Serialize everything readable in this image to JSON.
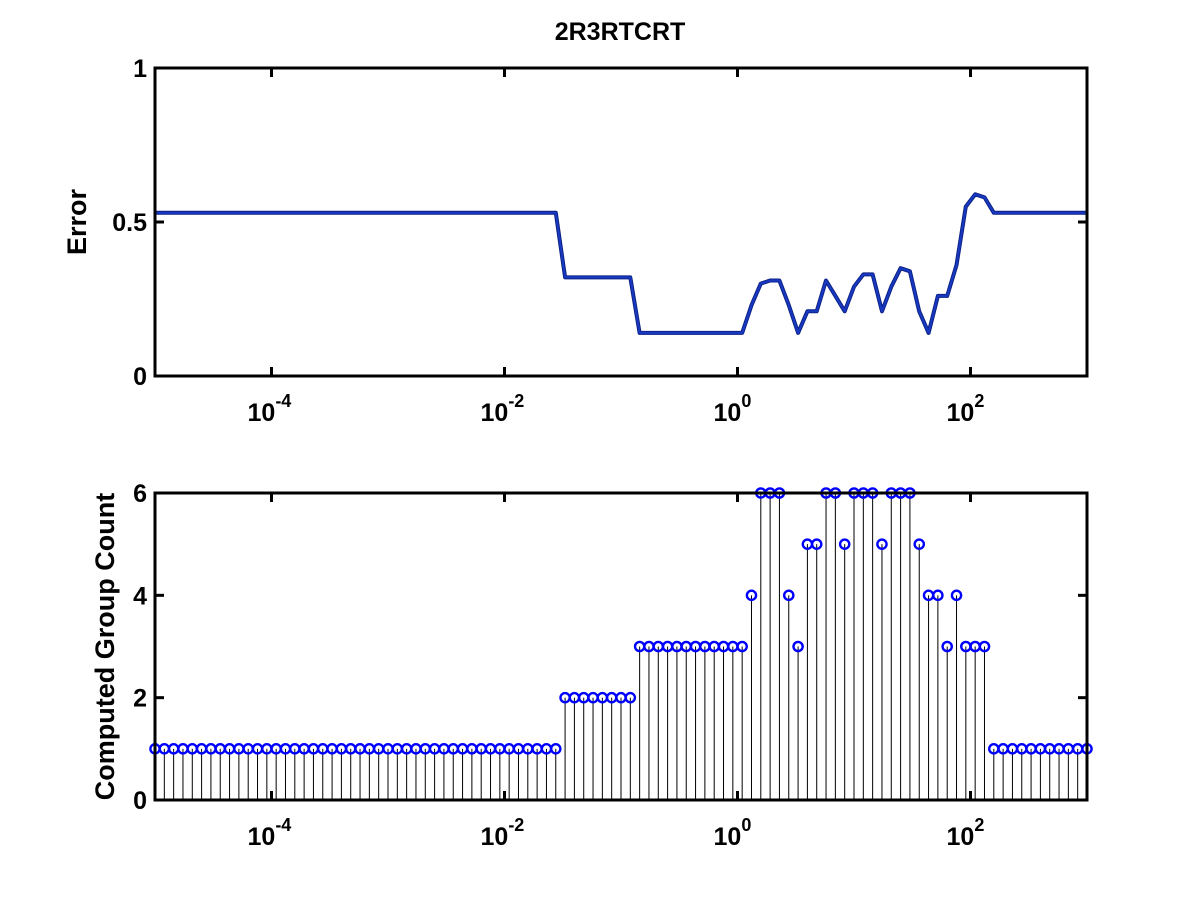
{
  "title": "2R3RTCRT",
  "colors": {
    "error_line": "#1838c0",
    "markers": "#0000ff",
    "stems": "#000000",
    "axes": "#000000"
  },
  "chart_data": [
    {
      "type": "line",
      "title": "2R3RTCRT",
      "xlabel": "",
      "ylabel": "Error",
      "xscale": "log",
      "xlim_log10": [
        -5,
        3
      ],
      "x_logspace": {
        "start_exp": -5,
        "end_exp": 3,
        "n": 101
      },
      "ylim": [
        0,
        1
      ],
      "yticks": [
        {
          "v": 0,
          "label": "0"
        },
        {
          "v": 0.5,
          "label": "0.5"
        },
        {
          "v": 1,
          "label": "1"
        }
      ],
      "xticks": [
        {
          "exp": -4,
          "base": "10",
          "sup": "-4"
        },
        {
          "exp": -2,
          "base": "10",
          "sup": "-2"
        },
        {
          "exp": 0,
          "base": "10",
          "sup": "0"
        },
        {
          "exp": 2,
          "base": "10",
          "sup": "2"
        }
      ],
      "grid": false,
      "values": [
        0.53,
        0.53,
        0.53,
        0.53,
        0.53,
        0.53,
        0.53,
        0.53,
        0.53,
        0.53,
        0.53,
        0.53,
        0.53,
        0.53,
        0.53,
        0.53,
        0.53,
        0.53,
        0.53,
        0.53,
        0.53,
        0.53,
        0.53,
        0.53,
        0.53,
        0.53,
        0.53,
        0.53,
        0.53,
        0.53,
        0.53,
        0.53,
        0.53,
        0.53,
        0.53,
        0.53,
        0.53,
        0.53,
        0.53,
        0.53,
        0.53,
        0.53,
        0.53,
        0.53,
        0.32,
        0.32,
        0.32,
        0.32,
        0.32,
        0.32,
        0.32,
        0.32,
        0.14,
        0.14,
        0.14,
        0.14,
        0.14,
        0.14,
        0.14,
        0.14,
        0.14,
        0.14,
        0.14,
        0.14,
        0.23,
        0.3,
        0.31,
        0.31,
        0.23,
        0.14,
        0.21,
        0.21,
        0.31,
        0.26,
        0.21,
        0.29,
        0.33,
        0.33,
        0.21,
        0.29,
        0.35,
        0.34,
        0.21,
        0.14,
        0.26,
        0.26,
        0.36,
        0.55,
        0.59,
        0.58,
        0.53,
        0.53,
        0.53,
        0.53,
        0.53,
        0.53,
        0.53,
        0.53,
        0.53,
        0.53,
        0.53
      ]
    },
    {
      "type": "stem",
      "xlabel": "",
      "ylabel": "Computed Group Count",
      "xscale": "log",
      "xlim_log10": [
        -5,
        3
      ],
      "x_logspace": {
        "start_exp": -5,
        "end_exp": 3,
        "n": 101
      },
      "ylim": [
        0,
        6
      ],
      "yticks": [
        {
          "v": 0,
          "label": "0"
        },
        {
          "v": 2,
          "label": "2"
        },
        {
          "v": 4,
          "label": "4"
        },
        {
          "v": 6,
          "label": "6"
        }
      ],
      "xticks": [
        {
          "exp": -4,
          "base": "10",
          "sup": "-4"
        },
        {
          "exp": -2,
          "base": "10",
          "sup": "-2"
        },
        {
          "exp": 0,
          "base": "10",
          "sup": "0"
        },
        {
          "exp": 2,
          "base": "10",
          "sup": "2"
        }
      ],
      "grid": false,
      "values": [
        1,
        1,
        1,
        1,
        1,
        1,
        1,
        1,
        1,
        1,
        1,
        1,
        1,
        1,
        1,
        1,
        1,
        1,
        1,
        1,
        1,
        1,
        1,
        1,
        1,
        1,
        1,
        1,
        1,
        1,
        1,
        1,
        1,
        1,
        1,
        1,
        1,
        1,
        1,
        1,
        1,
        1,
        1,
        1,
        2,
        2,
        2,
        2,
        2,
        2,
        2,
        2,
        3,
        3,
        3,
        3,
        3,
        3,
        3,
        3,
        3,
        3,
        3,
        3,
        4,
        6,
        6,
        6,
        4,
        3,
        5,
        5,
        6,
        6,
        5,
        6,
        6,
        6,
        5,
        6,
        6,
        6,
        5,
        4,
        4,
        3,
        4,
        3,
        3,
        3,
        1,
        1,
        1,
        1,
        1,
        1,
        1,
        1,
        1,
        1,
        1
      ]
    }
  ]
}
